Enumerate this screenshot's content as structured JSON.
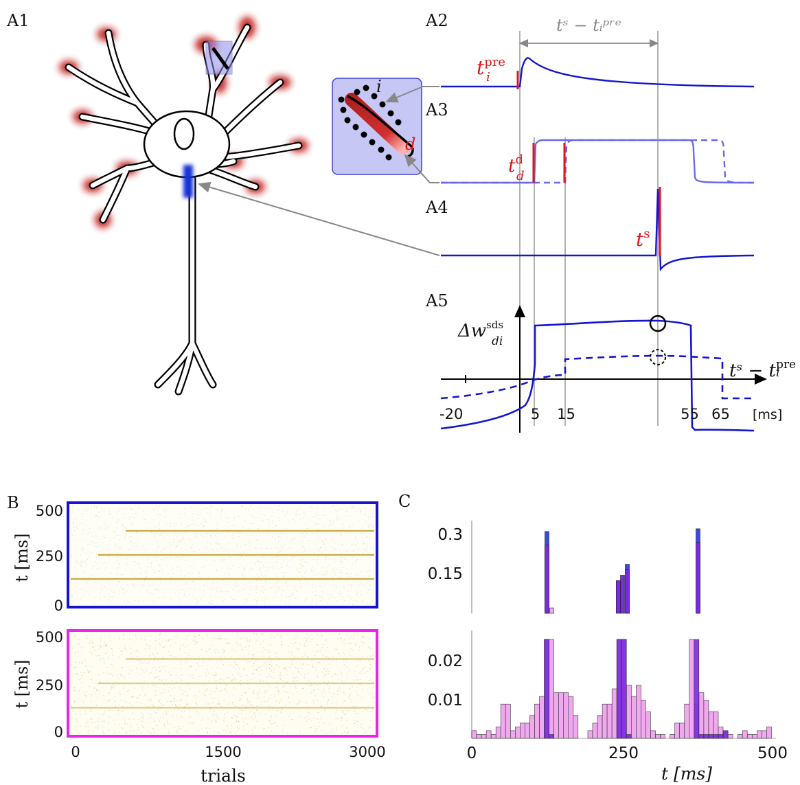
{
  "colors": {
    "blue": "#1515d0",
    "light_blue": "#6a6ae8",
    "red": "#e01515",
    "magenta": "#ee22ee",
    "raster": "#c8b060",
    "hist_blue": "#3a4ae0",
    "hist_purple": "#7a2ae0",
    "hist_pink": "#f0a8ee"
  },
  "panel_labels": {
    "a1": "A1",
    "a2": "A2",
    "a3": "A3",
    "a4": "A4",
    "a5": "A5",
    "b": "B",
    "c": "C"
  },
  "panel_a": {
    "interval_label": "tˢ − tᵢᵖʳᵉ",
    "t_pre_label": "t",
    "t_pre_sub": "i",
    "t_pre_sup": "pre",
    "t_d_label": "t",
    "t_d_sub": "d",
    "t_d_sup": "d",
    "t_s_label": "t",
    "t_s_sup": "s",
    "inset_i": "i",
    "inset_d": "d",
    "dw_label": "Δw",
    "dw_sub": "di",
    "dw_sup": "sds",
    "axis_label_base": "tˢ − t",
    "axis_label_sub": "i",
    "axis_label_sup": "pre",
    "unit": "[ms]"
  },
  "chart_data": [
    {
      "type": "line",
      "panel": "A5",
      "ylabel": "Δw_di^sds",
      "xlabel": "tˢ − tᵢᵖʳᵉ [ms]",
      "tick_labels": [
        "-20",
        "5",
        "15",
        "55",
        "65"
      ],
      "x": [
        -20,
        5,
        15,
        55,
        65
      ],
      "series": [
        {
          "style": "solid",
          "x": [
            -20,
            0,
            5,
            5,
            55,
            55,
            65
          ],
          "y": [
            -0.9,
            -0.6,
            0.2,
            0.8,
            0.72,
            -0.85,
            -0.82
          ]
        },
        {
          "style": "dashed",
          "x": [
            -20,
            5,
            15,
            15,
            65,
            65
          ],
          "y": [
            -0.35,
            0.05,
            0.05,
            0.26,
            0.25,
            -0.32
          ]
        }
      ]
    },
    {
      "type": "scatter",
      "panel": "B-top",
      "xlabel": "trials",
      "ylabel": "t [ms]",
      "x_ticks": [
        "0",
        "1500",
        "3000"
      ],
      "y_ticks": [
        "0",
        "250",
        "500"
      ],
      "xlim": [
        0,
        3000
      ],
      "ylim": [
        0,
        500
      ],
      "frame_color": "#1515d0",
      "pattern_times_ms": [
        125,
        250,
        375
      ]
    },
    {
      "type": "scatter",
      "panel": "B-bottom",
      "xlabel": "trials",
      "ylabel": "t [ms]",
      "x_ticks": [
        "0",
        "1500",
        "3000"
      ],
      "y_ticks": [
        "0",
        "250",
        "500"
      ],
      "xlim": [
        0,
        3000
      ],
      "ylim": [
        0,
        500
      ],
      "frame_color": "#ee22ee",
      "pattern_times_ms": [
        125,
        250,
        375
      ]
    },
    {
      "type": "bar",
      "panel": "C-top",
      "y_ticks": [
        "0.15",
        "0.3"
      ],
      "xlim": [
        0,
        500
      ],
      "ylim": [
        0,
        0.34
      ],
      "series": [
        {
          "name": "blue",
          "x": [
            125,
            258,
            375
          ],
          "y": [
            0.3,
            0.18,
            0.31
          ]
        },
        {
          "name": "purple",
          "x": [
            125,
            243,
            250,
            258,
            375
          ],
          "y": [
            0.25,
            0.12,
            0.14,
            0.16,
            0.26
          ]
        },
        {
          "name": "pink",
          "x": [
            133
          ],
          "y": [
            0.02
          ]
        }
      ]
    },
    {
      "type": "bar",
      "panel": "C-bottom",
      "xlabel": "t [ms]",
      "x_ticks": [
        "0",
        "250",
        "500"
      ],
      "y_ticks": [
        "0.01",
        "0.02"
      ],
      "xlim": [
        0,
        500
      ],
      "ylim": [
        0,
        0.028
      ],
      "bin_width": 8,
      "pink_centers": [
        4,
        12,
        20,
        28,
        36,
        44,
        52,
        60,
        68,
        76,
        84,
        92,
        100,
        108,
        116,
        124,
        132,
        140,
        148,
        156,
        164,
        172,
        196,
        204,
        212,
        220,
        228,
        236,
        244,
        252,
        260,
        268,
        276,
        284,
        292,
        300,
        308,
        316,
        332,
        340,
        348,
        356,
        364,
        372,
        380,
        388,
        396,
        404,
        412,
        420,
        428,
        444,
        452,
        460,
        468,
        476,
        484,
        492
      ],
      "pink_values": [
        0.002,
        0.001,
        0.001,
        0.002,
        0.001,
        0.003,
        0.009,
        0.009,
        0.002,
        0.003,
        0.004,
        0.004,
        0.006,
        0.009,
        0.011,
        0.026,
        0.026,
        0.012,
        0.012,
        0.012,
        0.011,
        0.006,
        0.002,
        0.004,
        0.006,
        0.009,
        0.009,
        0.013,
        0.026,
        0.026,
        0.014,
        0.011,
        0.014,
        0.01,
        0.007,
        0.002,
        0.001,
        0.001,
        0.001,
        0.004,
        0.004,
        0.009,
        0.026,
        0.009,
        0.012,
        0.01,
        0.007,
        0.007,
        0.003,
        0.002,
        0.001,
        0.001,
        0.002,
        0.001,
        0.001,
        0.002,
        0.002,
        0.003
      ],
      "purple_centers": [
        124,
        132,
        244,
        252,
        260,
        372,
        380,
        388,
        396,
        404,
        412,
        420
      ],
      "purple_values": [
        0.026,
        0.001,
        0.026,
        0.026,
        0.001,
        0.026,
        0.001,
        0.001,
        0.001,
        0.001,
        0.001,
        0.002
      ]
    }
  ]
}
